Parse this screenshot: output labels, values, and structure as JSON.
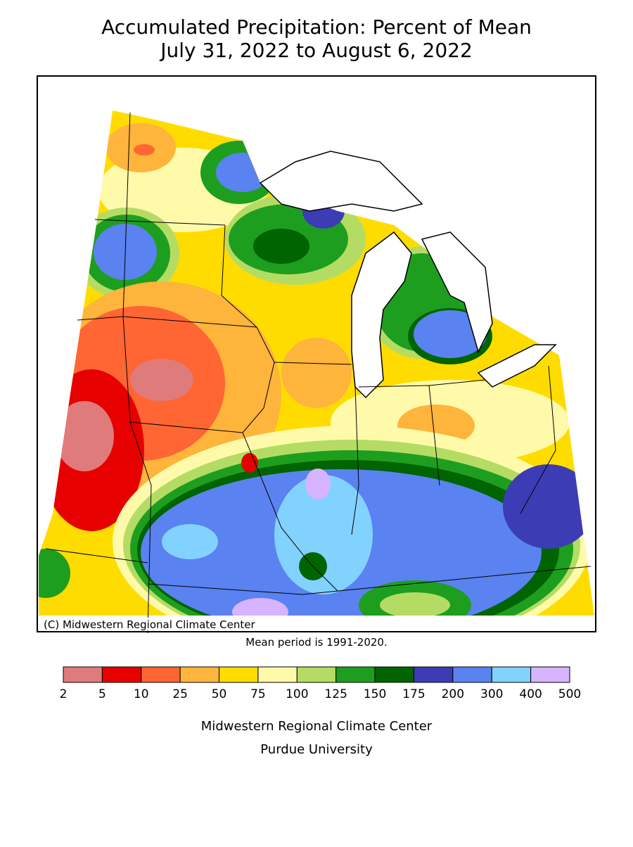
{
  "header": {
    "title": "Accumulated Precipitation: Percent of Mean",
    "subtitle": "July 31, 2022 to August 6, 2022"
  },
  "map": {
    "copyright": "(C) Midwestern Regional Climate Center",
    "note": "Mean period is 1991-2020."
  },
  "legend": {
    "ticks": [
      2,
      5,
      10,
      25,
      50,
      75,
      100,
      125,
      150,
      175,
      200,
      300,
      400,
      500
    ],
    "colors": [
      "#e07b7b",
      "#e60000",
      "#ff6633",
      "#ffb43c",
      "#ffdc00",
      "#fffaaa",
      "#b4dc64",
      "#1e9e1e",
      "#006400",
      "#3c3cb4",
      "#5a82f0",
      "#82d2ff",
      "#d7b4ff"
    ]
  },
  "footer": {
    "line1": "Midwestern Regional Climate Center",
    "line2": "Purdue University"
  }
}
